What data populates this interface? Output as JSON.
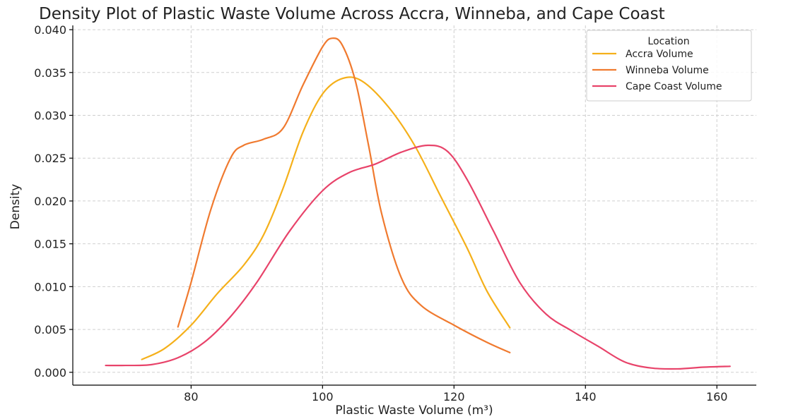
{
  "chart_data": {
    "type": "line",
    "title": "Density Plot of Plastic Waste Volume Across Accra, Winneba, and Cape Coast",
    "xlabel": "Plastic Waste Volume (m³)",
    "ylabel": "Density",
    "xlim": [
      62,
      166
    ],
    "ylim": [
      -0.0015,
      0.0405
    ],
    "x_ticks": [
      80,
      100,
      120,
      140,
      160
    ],
    "y_ticks": [
      0.0,
      0.005,
      0.01,
      0.015,
      0.02,
      0.025,
      0.03,
      0.035,
      0.04
    ],
    "x_tick_labels": [
      "80",
      "100",
      "120",
      "140",
      "160"
    ],
    "y_tick_labels": [
      "0.000",
      "0.005",
      "0.010",
      "0.015",
      "0.020",
      "0.025",
      "0.030",
      "0.035",
      "0.040"
    ],
    "grid": true,
    "legend": {
      "title": "Location",
      "placement": "top-right"
    },
    "series": [
      {
        "name": "Accra Volume",
        "color": "#F5B01A",
        "points": [
          [
            72.5,
            0.0015
          ],
          [
            76,
            0.0028
          ],
          [
            80,
            0.0055
          ],
          [
            84,
            0.0092
          ],
          [
            88,
            0.0125
          ],
          [
            91,
            0.016
          ],
          [
            94,
            0.0215
          ],
          [
            97,
            0.028
          ],
          [
            100,
            0.0325
          ],
          [
            103,
            0.0343
          ],
          [
            106,
            0.034
          ],
          [
            110,
            0.031
          ],
          [
            114,
            0.0265
          ],
          [
            118,
            0.0205
          ],
          [
            122,
            0.0145
          ],
          [
            125,
            0.0095
          ],
          [
            128.5,
            0.0052
          ]
        ]
      },
      {
        "name": "Winneba Volume",
        "color": "#F07A2F",
        "points": [
          [
            78,
            0.0053
          ],
          [
            80,
            0.0105
          ],
          [
            83,
            0.019
          ],
          [
            86,
            0.025
          ],
          [
            88,
            0.0265
          ],
          [
            91,
            0.0272
          ],
          [
            94,
            0.0285
          ],
          [
            97,
            0.0335
          ],
          [
            100,
            0.038
          ],
          [
            101.5,
            0.039
          ],
          [
            103,
            0.0382
          ],
          [
            105,
            0.034
          ],
          [
            107,
            0.0265
          ],
          [
            109,
            0.0185
          ],
          [
            112,
            0.011
          ],
          [
            115,
            0.0078
          ],
          [
            120,
            0.0055
          ],
          [
            125,
            0.0035
          ],
          [
            128.5,
            0.0023
          ]
        ]
      },
      {
        "name": "Cape Coast Volume",
        "color": "#E8436A",
        "points": [
          [
            67,
            0.0008
          ],
          [
            70,
            0.0008
          ],
          [
            74,
            0.0009
          ],
          [
            78,
            0.0017
          ],
          [
            82,
            0.0035
          ],
          [
            86,
            0.0065
          ],
          [
            90,
            0.0105
          ],
          [
            95,
            0.0165
          ],
          [
            100,
            0.0212
          ],
          [
            104,
            0.0233
          ],
          [
            108,
            0.0243
          ],
          [
            112,
            0.0257
          ],
          [
            116,
            0.0265
          ],
          [
            119,
            0.0258
          ],
          [
            122,
            0.0225
          ],
          [
            126,
            0.0165
          ],
          [
            130,
            0.0105
          ],
          [
            134,
            0.0068
          ],
          [
            138,
            0.0048
          ],
          [
            142,
            0.003
          ],
          [
            146,
            0.0012
          ],
          [
            150,
            0.0005
          ],
          [
            154,
            0.0004
          ],
          [
            158,
            0.0006
          ],
          [
            162,
            0.0007
          ]
        ]
      }
    ]
  }
}
